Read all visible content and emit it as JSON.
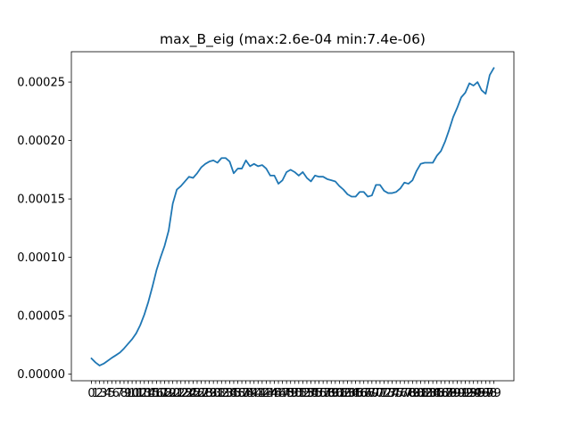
{
  "chart_data": {
    "type": "line",
    "title": "max_B_eig (max:2.6e-04 min:7.4e-06)",
    "xlabel": "",
    "ylabel": "",
    "grid": false,
    "series_color": "#1f77b4",
    "ylim": [
      -5.6e-06,
      0.000276
    ],
    "y_ticks": [
      0,
      5e-05,
      0.0001,
      0.00015,
      0.0002,
      0.00025
    ],
    "y_tick_labels": [
      "0.00000",
      "0.00005",
      "0.00010",
      "0.00015",
      "0.00020",
      "0.00025"
    ],
    "x": [
      0,
      1,
      2,
      3,
      4,
      5,
      6,
      7,
      8,
      9,
      10,
      11,
      12,
      13,
      14,
      15,
      16,
      17,
      18,
      19,
      20,
      21,
      22,
      23,
      24,
      25,
      26,
      27,
      28,
      29,
      30,
      31,
      32,
      33,
      34,
      35,
      36,
      37,
      38,
      39,
      40,
      41,
      42,
      43,
      44,
      45,
      46,
      47,
      48,
      49,
      50,
      51,
      52,
      53,
      54,
      55,
      56,
      57,
      58,
      59,
      60,
      61,
      62,
      63,
      64,
      65,
      66,
      67,
      68,
      69,
      70,
      71,
      72,
      73,
      74,
      75,
      76,
      77,
      78,
      79,
      80,
      81,
      82,
      83,
      84,
      85,
      86,
      87,
      88,
      89,
      90,
      91,
      92,
      93,
      94,
      95,
      96,
      97,
      98,
      99
    ],
    "values": [
      1.35e-05,
      1e-05,
      7.4e-06,
      9e-06,
      1.15e-05,
      1.4e-05,
      1.62e-05,
      1.85e-05,
      2.2e-05,
      2.6e-05,
      3e-05,
      3.5e-05,
      4.2e-05,
      5.1e-05,
      6.2e-05,
      7.5e-05,
      8.9e-05,
      0.0001,
      0.00011,
      0.000123,
      0.000146,
      0.000158,
      0.000161,
      0.000165,
      0.000169,
      0.000168,
      0.000172,
      0.000177,
      0.00018,
      0.000182,
      0.000183,
      0.000181,
      0.000185,
      0.000185,
      0.000182,
      0.000172,
      0.000176,
      0.000176,
      0.000183,
      0.000178,
      0.00018,
      0.000178,
      0.000179,
      0.000176,
      0.00017,
      0.00017,
      0.000163,
      0.000166,
      0.000173,
      0.000175,
      0.000173,
      0.00017,
      0.000173,
      0.000168,
      0.000165,
      0.00017,
      0.000169,
      0.000169,
      0.000167,
      0.000166,
      0.000165,
      0.000161,
      0.000158,
      0.000154,
      0.000152,
      0.000152,
      0.000156,
      0.000156,
      0.000152,
      0.000153,
      0.000162,
      0.000162,
      0.000157,
      0.000155,
      0.000155,
      0.000156,
      0.000159,
      0.000164,
      0.000163,
      0.000166,
      0.000174,
      0.00018,
      0.000181,
      0.000181,
      0.000181,
      0.000187,
      0.000191,
      0.000199,
      0.000209,
      0.00022,
      0.000228,
      0.000237,
      0.000241,
      0.000249,
      0.000247,
      0.00025,
      0.000243,
      0.00024,
      0.000256,
      0.000262
    ]
  }
}
